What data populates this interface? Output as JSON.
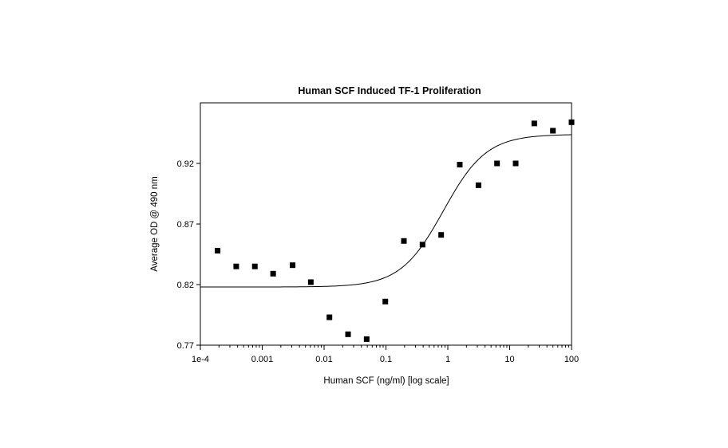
{
  "chart_data": {
    "type": "scatter",
    "title": "Human SCF Induced TF-1 Proliferation",
    "xlabel": "Human SCF (ng/ml) [log scale]",
    "ylabel": "Average OD @ 490 nm",
    "x_scale": "log",
    "xlim": [
      0.0001,
      100
    ],
    "ylim": [
      0.77,
      0.97
    ],
    "x_ticks": [
      0.0001,
      0.001,
      0.01,
      0.1,
      1,
      10,
      100
    ],
    "x_tick_labels": [
      "1e-4",
      "0.001",
      "0.01",
      "0.1",
      "1",
      "10",
      "100"
    ],
    "y_ticks": [
      0.77,
      0.82,
      0.87,
      0.92
    ],
    "y_tick_labels": [
      "0.77",
      "0.82",
      "0.87",
      "0.92"
    ],
    "grid": false,
    "legend": "none",
    "marker": "square",
    "series": [
      {
        "points": [
          [
            0.00019,
            0.848
          ],
          [
            0.00038,
            0.835
          ],
          [
            0.00076,
            0.835
          ],
          [
            0.0015,
            0.829
          ],
          [
            0.0031,
            0.836
          ],
          [
            0.0061,
            0.822
          ],
          [
            0.0122,
            0.793
          ],
          [
            0.0244,
            0.779
          ],
          [
            0.0488,
            0.775
          ],
          [
            0.0977,
            0.806
          ],
          [
            0.195,
            0.856
          ],
          [
            0.39,
            0.853
          ],
          [
            0.78,
            0.861
          ],
          [
            1.56,
            0.919
          ],
          [
            3.13,
            0.902
          ],
          [
            6.25,
            0.92
          ],
          [
            12.5,
            0.92
          ],
          [
            25,
            0.953
          ],
          [
            50,
            0.947
          ],
          [
            100,
            0.954
          ]
        ]
      }
    ],
    "fit_curve": {
      "model": "4-parameter logistic",
      "bottom": 0.818,
      "top": 0.944,
      "ec50": 0.85,
      "hill": 1.25
    }
  }
}
